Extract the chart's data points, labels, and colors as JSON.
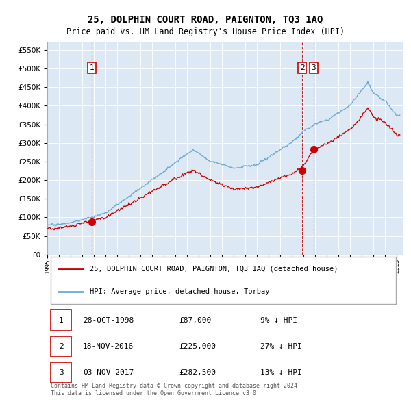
{
  "title": "25, DOLPHIN COURT ROAD, PAIGNTON, TQ3 1AQ",
  "subtitle": "Price paid vs. HM Land Registry's House Price Index (HPI)",
  "title_fontsize": 10,
  "subtitle_fontsize": 8.5,
  "background_color": "#ffffff",
  "plot_bg_color": "#dce9f5",
  "grid_color": "#ffffff",
  "ylim": [
    0,
    570000
  ],
  "yticks": [
    0,
    50000,
    100000,
    150000,
    200000,
    250000,
    300000,
    350000,
    400000,
    450000,
    500000,
    550000
  ],
  "hpi_color": "#6fa8d0",
  "price_color": "#cc0000",
  "dot_color": "#cc0000",
  "vline_color": "#cc0000",
  "sale_points": [
    {
      "date": 1998.83,
      "price": 87000,
      "label": "1"
    },
    {
      "date": 2016.88,
      "price": 225000,
      "label": "2"
    },
    {
      "date": 2017.84,
      "price": 282500,
      "label": "3"
    }
  ],
  "legend_property_label": "25, DOLPHIN COURT ROAD, PAIGNTON, TQ3 1AQ (detached house)",
  "legend_hpi_label": "HPI: Average price, detached house, Torbay",
  "table_rows": [
    {
      "num": "1",
      "date": "28-OCT-1998",
      "price": "£87,000",
      "pct": "9% ↓ HPI"
    },
    {
      "num": "2",
      "date": "18-NOV-2016",
      "price": "£225,000",
      "pct": "27% ↓ HPI"
    },
    {
      "num": "3",
      "date": "03-NOV-2017",
      "price": "£282,500",
      "pct": "13% ↓ HPI"
    }
  ],
  "footer": "Contains HM Land Registry data © Crown copyright and database right 2024.\nThis data is licensed under the Open Government Licence v3.0.",
  "xmin": 1995.0,
  "xmax": 2025.5
}
